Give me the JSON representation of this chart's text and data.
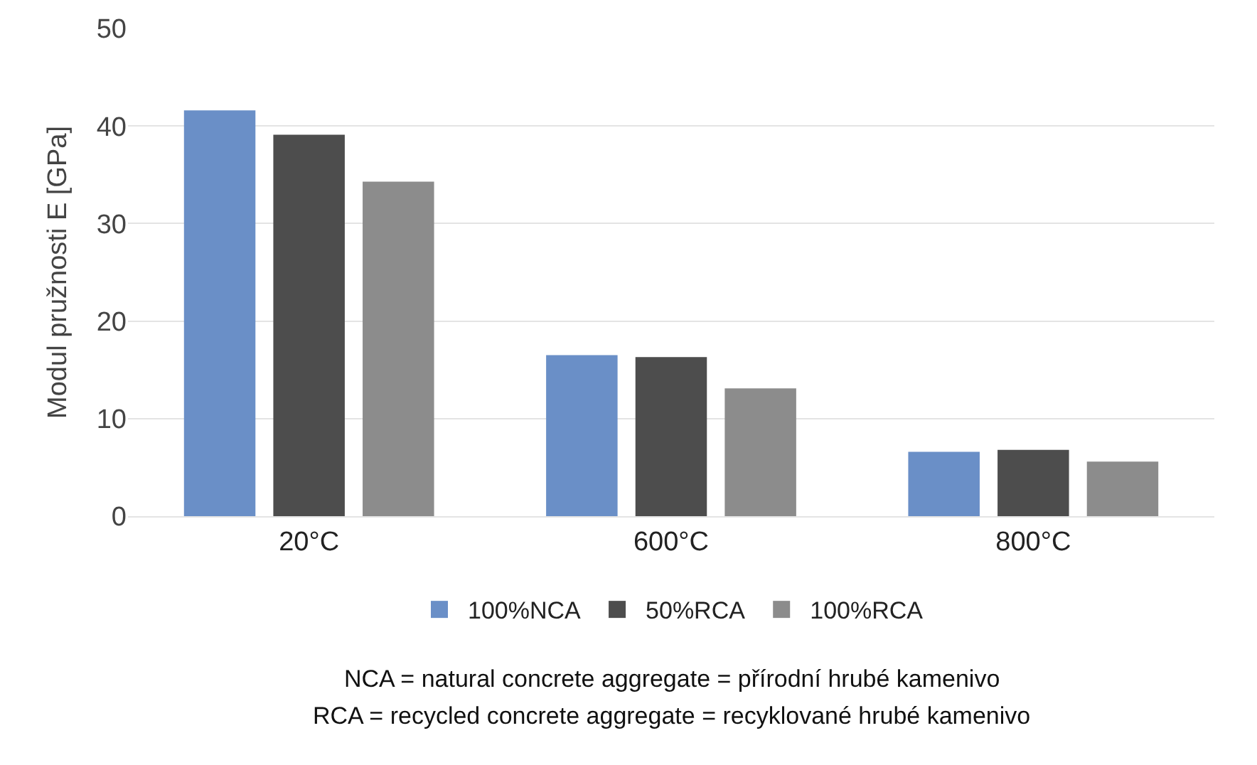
{
  "chart_data": {
    "type": "bar",
    "ylabel": "Modul pružnosti E [GPa]",
    "categories": [
      "20°C",
      "600°C",
      "800°C"
    ],
    "series": [
      {
        "name": "100%NCA",
        "color": "#6a8fc7",
        "values": [
          41.6,
          16.5,
          6.6
        ]
      },
      {
        "name": "50%RCA",
        "color": "#4d4d4d",
        "values": [
          39.1,
          16.3,
          6.8
        ]
      },
      {
        "name": "100%RCA",
        "color": "#8c8c8c",
        "values": [
          34.3,
          13.1,
          5.6
        ]
      }
    ],
    "ylim": [
      0,
      50
    ],
    "yticks": [
      0,
      10,
      20,
      30,
      40,
      50
    ],
    "grid": "y",
    "legend": "bottom",
    "annotations": [
      "NCA = natural concrete aggregate = přírodní hrubé kamenivo",
      "RCA = recycled concrete aggregate = recyklované hrubé kamenivo"
    ]
  }
}
